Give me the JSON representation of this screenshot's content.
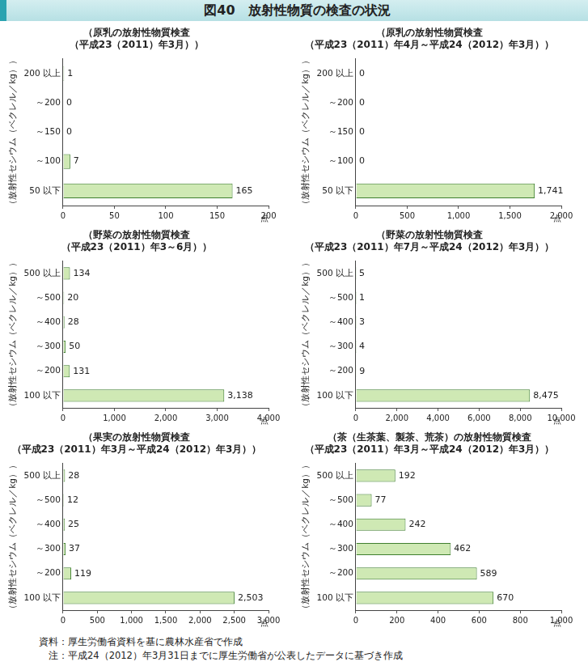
{
  "title": "図40　放射性物質の検査の状況",
  "notes": [
    "資料：厚生労働省資料を基に農林水産省で作成",
    "　注：平成24（2012）年3月31日までに厚生労働省が公表したデータに基づき作成"
  ],
  "chart_data": [
    {
      "type": "bar",
      "orientation": "horizontal",
      "title": [
        "（原乳の放射性物質検査",
        "（平成23（2011）年3月））"
      ],
      "y_label": "（放射性セシウム（ベクレル／kg））",
      "x_label": "点",
      "categories": [
        "200 以上",
        "～200",
        "～150",
        "～100",
        "50 以下"
      ],
      "values": [
        1,
        0,
        0,
        7,
        165
      ],
      "color": "#cfe9b4",
      "data_labels": true,
      "grid": false,
      "xlim": [
        0,
        200
      ],
      "xticks": [
        0,
        50,
        100,
        150,
        200
      ]
    },
    {
      "type": "bar",
      "orientation": "horizontal",
      "title": [
        "（原乳の放射性物質検査",
        "（平成23（2011）年4月～平成24（2012）年3月））"
      ],
      "y_label": "（放射性セシウム（ベクレル／kg））",
      "x_label": "点",
      "categories": [
        "200 以上",
        "～200",
        "～150",
        "～100",
        "50 以下"
      ],
      "values": [
        0,
        0,
        0,
        0,
        1741
      ],
      "value_labels": [
        "0",
        "0",
        "0",
        "0",
        "1,741"
      ],
      "color": "#cfe9b4",
      "data_labels": true,
      "grid": false,
      "xlim": [
        0,
        2000
      ],
      "xticks": [
        0,
        500,
        {
          "value": 1000,
          "label": "1,000"
        },
        {
          "value": 1500,
          "label": "1,500"
        },
        {
          "value": 2000,
          "label": "2,000"
        }
      ]
    },
    {
      "type": "bar",
      "orientation": "horizontal",
      "title": [
        "（野菜の放射性物質検査",
        "（平成23（2011）年3～6月））"
      ],
      "y_label": "（放射性セシウム（ベクレル／kg））",
      "x_label": "点",
      "categories": [
        "500 以上",
        "～500",
        "～400",
        "～300",
        "～200",
        "100 以下"
      ],
      "values": [
        134,
        20,
        28,
        50,
        131,
        3138
      ],
      "value_labels": [
        "134",
        "20",
        "28",
        "50",
        "131",
        "3,138"
      ],
      "color": "#cfe9b4",
      "data_labels": true,
      "grid": false,
      "xlim": [
        0,
        4000
      ],
      "xticks": [
        0,
        {
          "value": 1000,
          "label": "1,000"
        },
        {
          "value": 2000,
          "label": "2,000"
        },
        {
          "value": 3000,
          "label": "3,000"
        },
        {
          "value": 4000,
          "label": "4,000"
        }
      ]
    },
    {
      "type": "bar",
      "orientation": "horizontal",
      "title": [
        "（野菜の放射性物質検査",
        "（平成23（2011）年7月～平成24（2012）年3月））"
      ],
      "y_label": "（放射性セシウム（ベクレル／kg））",
      "x_label": "点",
      "categories": [
        "500 以上",
        "～500",
        "～400",
        "～300",
        "～200",
        "100 以下"
      ],
      "values": [
        5,
        1,
        3,
        4,
        9,
        8475
      ],
      "value_labels": [
        "5",
        "1",
        "3",
        "4",
        "9",
        "8,475"
      ],
      "color": "#cfe9b4",
      "data_labels": true,
      "grid": false,
      "xlim": [
        0,
        10000
      ],
      "xticks": [
        0,
        {
          "value": 2000,
          "label": "2,000"
        },
        {
          "value": 4000,
          "label": "4,000"
        },
        {
          "value": 6000,
          "label": "6,000"
        },
        {
          "value": 8000,
          "label": "8,000"
        },
        {
          "value": 10000,
          "label": "10,000"
        }
      ]
    },
    {
      "type": "bar",
      "orientation": "horizontal",
      "title": [
        "（果実の放射性物質検査",
        "（平成23（2011）年3月～平成24（2012）年3月））"
      ],
      "y_label": "（放射性セシウム（ベクレル／kg））",
      "x_label": "点",
      "categories": [
        "500 以上",
        "～500",
        "～400",
        "～300",
        "～200",
        "100 以下"
      ],
      "values": [
        28,
        12,
        25,
        37,
        119,
        2503
      ],
      "value_labels": [
        "28",
        "12",
        "25",
        "37",
        "119",
        "2,503"
      ],
      "color": "#cfe9b4",
      "data_labels": true,
      "grid": false,
      "xlim": [
        0,
        3000
      ],
      "xticks": [
        0,
        500,
        {
          "value": 1000,
          "label": "1,000"
        },
        {
          "value": 1500,
          "label": "1,500"
        },
        {
          "value": 2000,
          "label": "2,000"
        },
        {
          "value": 2500,
          "label": "2,500"
        },
        {
          "value": 3000,
          "label": "3,000"
        }
      ]
    },
    {
      "type": "bar",
      "orientation": "horizontal",
      "title": [
        "（茶（生茶葉、製茶、荒茶）の放射性物質検査",
        "（平成23（2011）年3月～平成24（2012）年3月））"
      ],
      "y_label": "（放射性セシウム（ベクレル／kg））",
      "x_label": "点",
      "categories": [
        "500 以上",
        "～500",
        "～400",
        "～300",
        "～200",
        "100 以下"
      ],
      "values": [
        192,
        77,
        242,
        462,
        589,
        670
      ],
      "color": "#cfe9b4",
      "data_labels": true,
      "grid": false,
      "xlim": [
        0,
        1000
      ],
      "xticks": [
        0,
        200,
        400,
        600,
        800,
        {
          "value": 1000,
          "label": "1,000"
        }
      ]
    }
  ]
}
